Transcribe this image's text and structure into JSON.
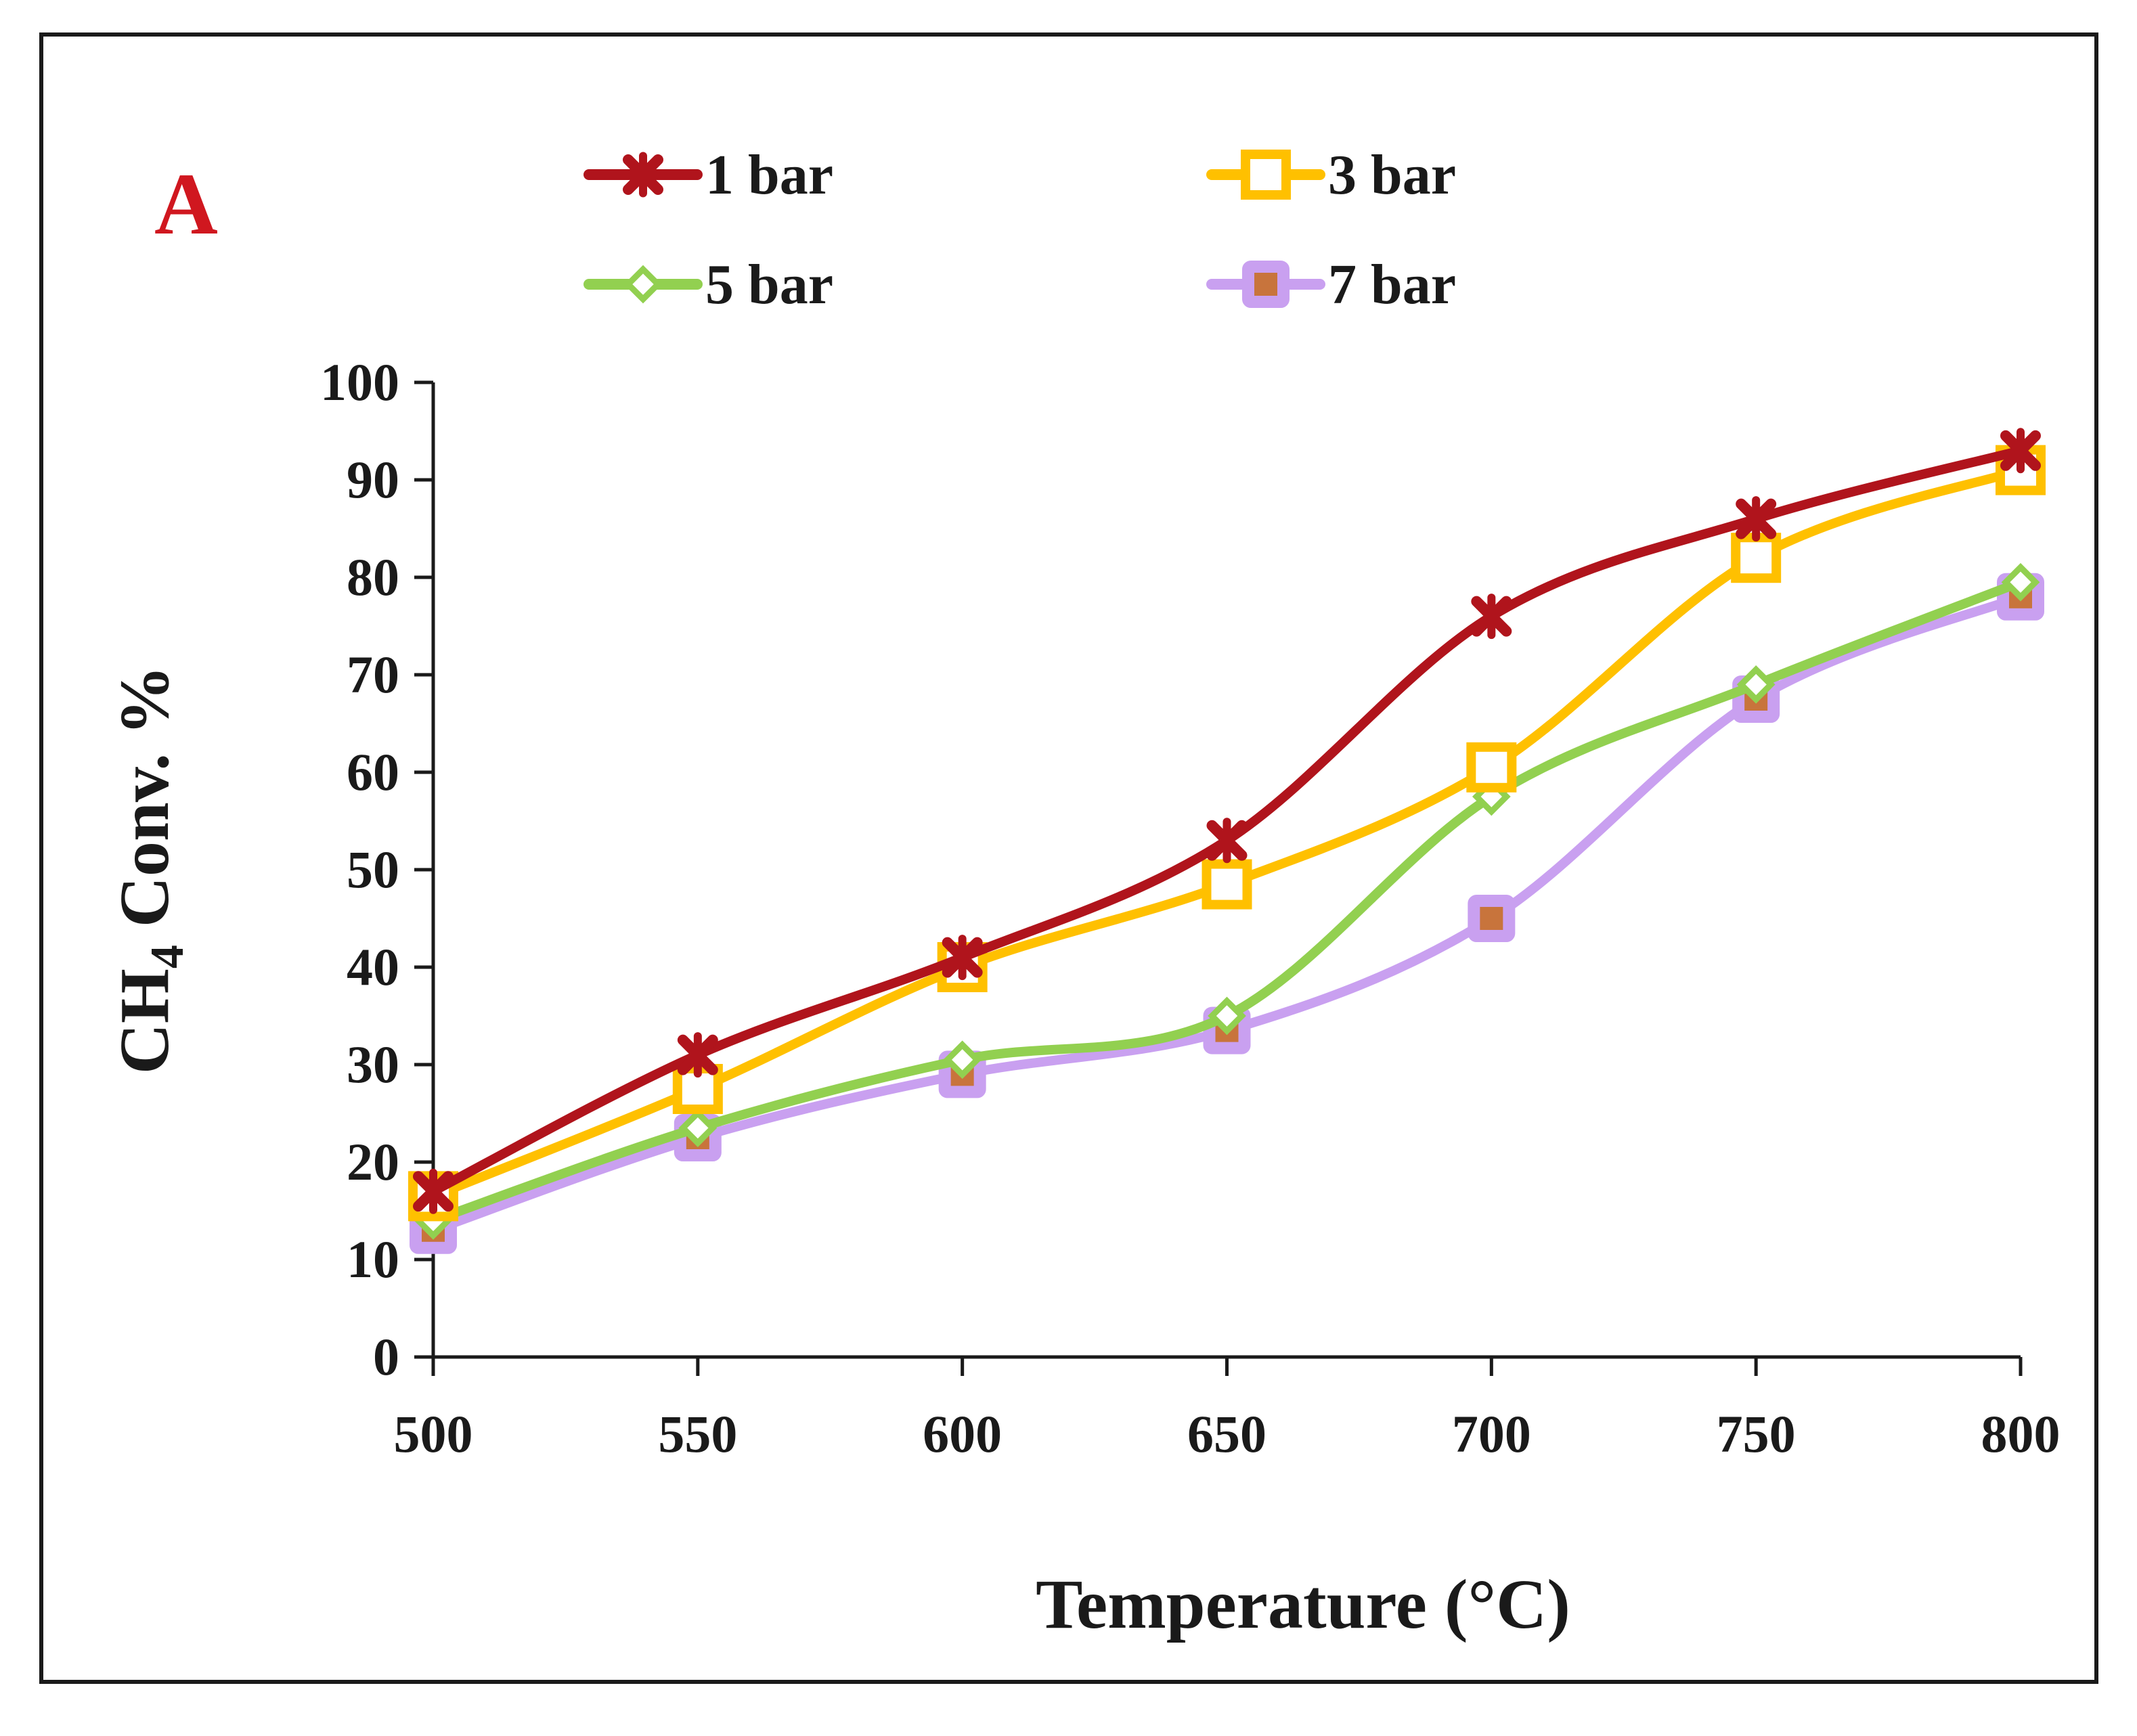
{
  "chart_data": {
    "type": "line",
    "panel_label": "A",
    "xlabel": "Temperature (°C)",
    "ylabel_main": "CH",
    "ylabel_sub": "4",
    "ylabel_tail": " Conv. %",
    "x": [
      500,
      550,
      600,
      650,
      700,
      750,
      800
    ],
    "xlim": [
      500,
      800
    ],
    "ylim": [
      0,
      100
    ],
    "xticks": [
      "500",
      "550",
      "600",
      "650",
      "700",
      "750",
      "800"
    ],
    "yticks": [
      "0",
      "10",
      "20",
      "30",
      "40",
      "50",
      "60",
      "70",
      "80",
      "90",
      "100"
    ],
    "grid": false,
    "legend_position": "top",
    "series": [
      {
        "name": "1 bar",
        "color": "#b0141c",
        "marker": "star",
        "values": [
          17,
          31,
          41,
          53,
          76,
          86,
          93
        ]
      },
      {
        "name": "3 bar",
        "color": "#ffc000",
        "marker": "open-square",
        "values": [
          16.5,
          27.5,
          40,
          48.5,
          60.5,
          82,
          91
        ]
      },
      {
        "name": "5 bar",
        "color": "#92d050",
        "marker": "open-diamond",
        "values": [
          14,
          23.5,
          30.5,
          35,
          57.5,
          69,
          79.5
        ]
      },
      {
        "name": "7 bar",
        "color": "#c9a0f0",
        "marker": "filled-square",
        "marker_fill": "#c8743c",
        "values": [
          13,
          22.5,
          29,
          33.5,
          45,
          67.5,
          78
        ]
      }
    ]
  }
}
